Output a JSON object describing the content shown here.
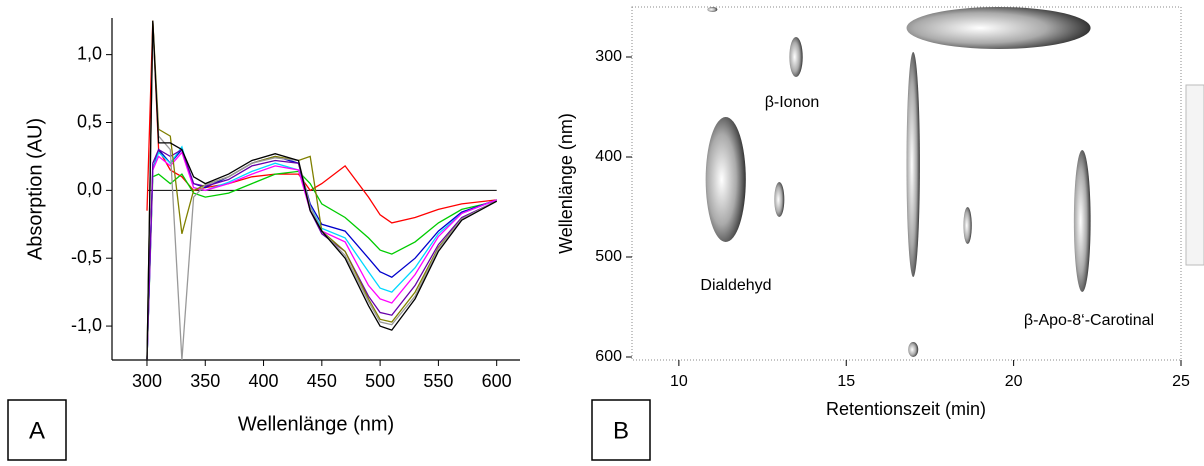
{
  "chart_data": [
    {
      "type": "line",
      "panel_label": "A",
      "xlabel": "Wellenlänge (nm)",
      "ylabel": "Absorption (AU)",
      "x": [
        300,
        305,
        310,
        320,
        330,
        340,
        350,
        370,
        390,
        410,
        430,
        440,
        450,
        470,
        490,
        500,
        510,
        530,
        550,
        570,
        600
      ],
      "xlim": [
        270,
        620
      ],
      "xticks": [
        300,
        350,
        400,
        450,
        500,
        550,
        600
      ],
      "ylim": [
        -1.25,
        1.27
      ],
      "yticks": [
        {
          "value": -1.0,
          "label": "-1,0"
        },
        {
          "value": -0.5,
          "label": "-0,5"
        },
        {
          "value": 0,
          "label": "0,0"
        },
        {
          "value": 0.5,
          "label": "0,5"
        },
        {
          "value": 1.0,
          "label": "1,0"
        }
      ],
      "series": [
        {
          "color": "#ff0000",
          "values": [
            -0.15,
            1.25,
            0.3,
            0.15,
            0.1,
            0.0,
            0.02,
            0.05,
            0.1,
            0.12,
            0.12,
            0.0,
            0.05,
            0.18,
            -0.05,
            -0.18,
            -0.24,
            -0.2,
            -0.14,
            -0.1,
            -0.07
          ]
        },
        {
          "color": "#00cc00",
          "values": [
            -1.25,
            0.1,
            0.12,
            0.05,
            0.12,
            -0.02,
            -0.05,
            -0.02,
            0.05,
            0.12,
            0.14,
            0.05,
            -0.1,
            -0.2,
            -0.35,
            -0.44,
            -0.47,
            -0.38,
            -0.24,
            -0.14,
            -0.08
          ]
        },
        {
          "color": "#0000cc",
          "values": [
            -1.25,
            0.15,
            0.3,
            0.2,
            0.3,
            0.05,
            0.02,
            0.1,
            0.2,
            0.25,
            0.2,
            -0.1,
            -0.25,
            -0.3,
            -0.5,
            -0.6,
            -0.64,
            -0.5,
            -0.3,
            -0.16,
            -0.07
          ]
        },
        {
          "color": "#00d8ff",
          "values": [
            -1.25,
            0.15,
            0.28,
            0.2,
            0.32,
            0.02,
            0.0,
            0.06,
            0.14,
            0.2,
            0.15,
            -0.12,
            -0.28,
            -0.35,
            -0.6,
            -0.72,
            -0.75,
            -0.57,
            -0.32,
            -0.17,
            -0.07
          ]
        },
        {
          "color": "#ff00ff",
          "values": [
            -1.25,
            0.15,
            0.25,
            0.18,
            0.28,
            0.02,
            0.0,
            0.05,
            0.12,
            0.18,
            0.15,
            -0.15,
            -0.3,
            -0.38,
            -0.7,
            -0.8,
            -0.83,
            -0.62,
            -0.34,
            -0.17,
            -0.07
          ]
        },
        {
          "color": "#6600aa",
          "values": [
            -1.25,
            0.2,
            0.3,
            0.25,
            0.3,
            0.05,
            0.03,
            0.08,
            0.18,
            0.22,
            0.2,
            -0.15,
            -0.32,
            -0.45,
            -0.78,
            -0.9,
            -0.92,
            -0.7,
            -0.4,
            -0.2,
            -0.08
          ]
        },
        {
          "color": "#808000",
          "values": [
            -1.25,
            1.25,
            0.45,
            0.4,
            -0.32,
            0.0,
            0.04,
            0.1,
            0.2,
            0.25,
            0.22,
            0.25,
            -0.3,
            -0.45,
            -0.8,
            -0.95,
            -0.97,
            -0.75,
            -0.42,
            -0.21,
            -0.08
          ]
        },
        {
          "color": "#999999",
          "values": [
            -1.25,
            1.2,
            0.4,
            0.3,
            -1.25,
            -0.05,
            0.04,
            0.1,
            0.2,
            0.24,
            0.22,
            -0.12,
            -0.3,
            -0.48,
            -0.82,
            -0.97,
            -0.99,
            -0.78,
            -0.43,
            -0.21,
            -0.08
          ]
        },
        {
          "color": "#000000",
          "values": [
            -1.25,
            1.25,
            0.35,
            0.35,
            0.3,
            0.1,
            0.05,
            0.12,
            0.22,
            0.27,
            0.22,
            -0.15,
            -0.3,
            -0.5,
            -0.85,
            -1.0,
            -1.03,
            -0.8,
            -0.45,
            -0.22,
            -0.08
          ]
        }
      ]
    },
    {
      "type": "contour",
      "panel_label": "B",
      "xlabel": "Retentionszeit (min)",
      "ylabel": "Wellenlänge (nm)",
      "xlim": [
        8.6,
        25
      ],
      "xticks": [
        10,
        15,
        20,
        25
      ],
      "ylim": [
        250,
        603
      ],
      "yticks": [
        300,
        400,
        500,
        600
      ],
      "y_inverted": true,
      "spots": [
        {
          "x": [
            10.85,
            11.15
          ],
          "y": [
            250,
            255
          ]
        },
        {
          "x": [
            13.3,
            13.7
          ],
          "y": [
            280,
            320
          ]
        },
        {
          "x": [
            10.8,
            12.0
          ],
          "y": [
            360,
            485
          ]
        },
        {
          "x": [
            12.85,
            13.15
          ],
          "y": [
            425,
            460
          ]
        },
        {
          "x": [
            16.8,
            17.2
          ],
          "y": [
            295,
            520
          ]
        },
        {
          "x": [
            16.8,
            22.3
          ],
          "y": [
            250,
            292
          ]
        },
        {
          "x": [
            18.5,
            18.75
          ],
          "y": [
            450,
            487
          ]
        },
        {
          "x": [
            21.8,
            22.3
          ],
          "y": [
            393,
            535
          ]
        },
        {
          "x": [
            16.85,
            17.15
          ],
          "y": [
            585,
            600
          ]
        }
      ],
      "annotations": [
        "β-Ionon",
        "Dialdehyd",
        "β-Apo-8‘-Carotinal"
      ]
    }
  ]
}
